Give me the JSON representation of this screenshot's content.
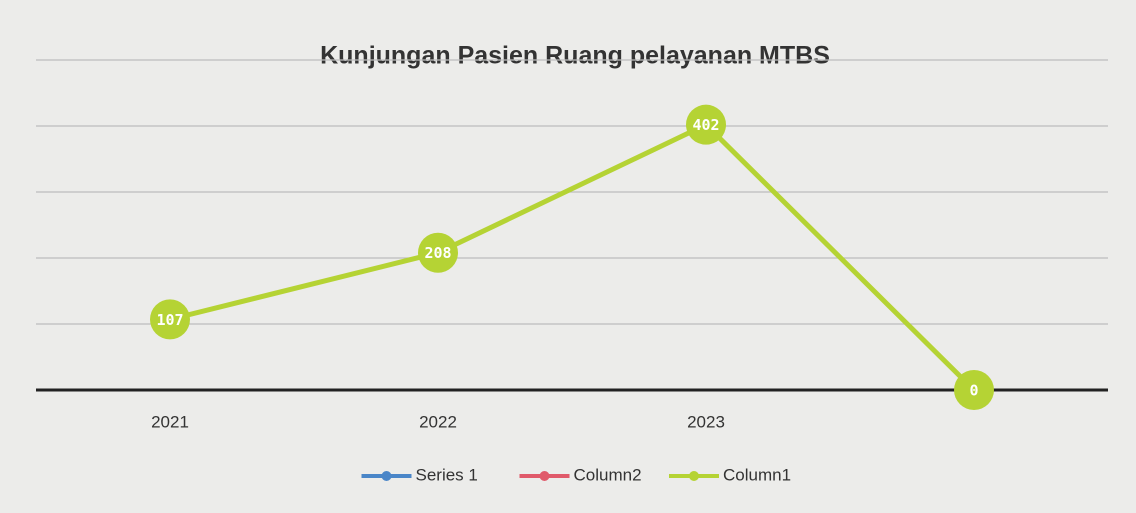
{
  "chart_data": {
    "type": "line",
    "title": "Kunjungan Pasien Ruang pelayanan MTBS",
    "categories": [
      "2021",
      "2022",
      "2023",
      null
    ],
    "series": [
      {
        "name": "Series 1",
        "color": "#4a86c8",
        "values": [
          null,
          null,
          null,
          null
        ]
      },
      {
        "name": "Column2",
        "color": "#e05a6a",
        "values": [
          null,
          null,
          null,
          null
        ]
      },
      {
        "name": "Column1",
        "color": "#b5d334",
        "values": [
          107,
          208,
          402,
          0
        ]
      }
    ],
    "ylim": [
      0,
      500
    ],
    "yticks": [
      0,
      100,
      200,
      300,
      400,
      500
    ],
    "grid": true,
    "legend": "bottom"
  }
}
